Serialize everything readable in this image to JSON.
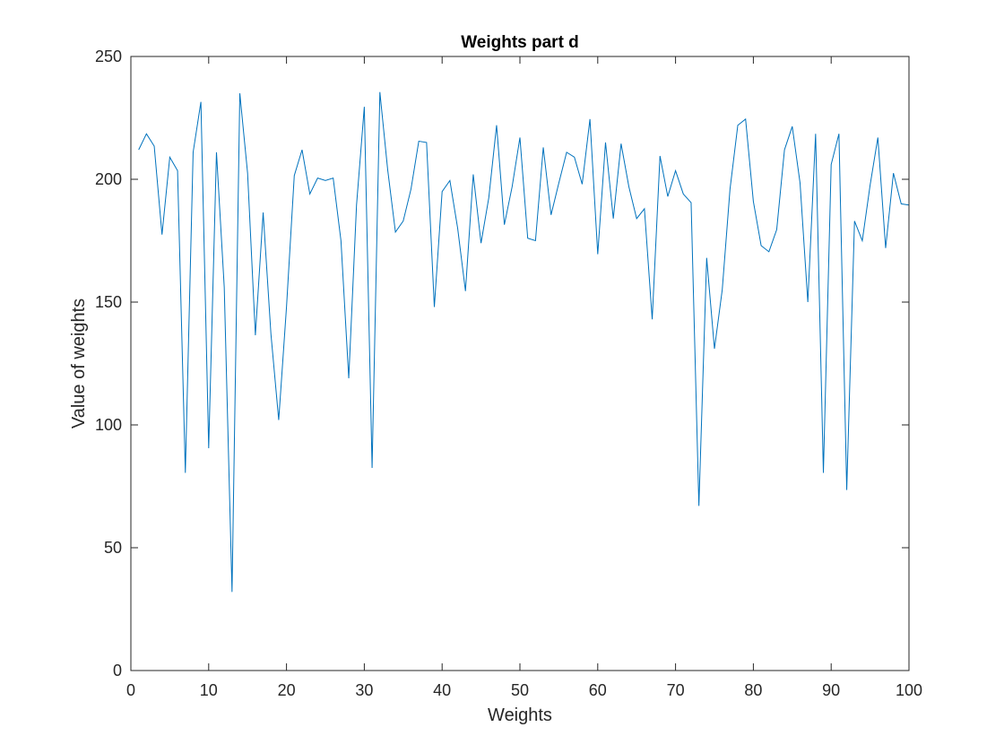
{
  "chart_data": {
    "type": "line",
    "title": "Weights part d",
    "xlabel": "Weights",
    "ylabel": "Value of weights",
    "xlim": [
      0,
      100
    ],
    "ylim": [
      0,
      250
    ],
    "xticks": [
      0,
      10,
      20,
      30,
      40,
      50,
      60,
      70,
      80,
      90,
      100
    ],
    "yticks": [
      0,
      50,
      100,
      150,
      200,
      250
    ],
    "grid": false,
    "line_color": "#0072BD",
    "series": [
      {
        "x": [
          1,
          2,
          3,
          4,
          5,
          6,
          7,
          8,
          9,
          10,
          11,
          12,
          13,
          14,
          15,
          16,
          17,
          18,
          19,
          20,
          21,
          22,
          23,
          24,
          25,
          26,
          27,
          28,
          29,
          30,
          31,
          32,
          33,
          34,
          35,
          36,
          37,
          38,
          39,
          40,
          41,
          42,
          43,
          44,
          45,
          46,
          47,
          48,
          49,
          50,
          51,
          52,
          53,
          54,
          55,
          56,
          57,
          58,
          59,
          60,
          61,
          62,
          63,
          64,
          65,
          66,
          67,
          68,
          69,
          70,
          71,
          72,
          73,
          74,
          75,
          76,
          77,
          78,
          79,
          80,
          81,
          82,
          83,
          84,
          85,
          86,
          87,
          88,
          89,
          90,
          91,
          92,
          93,
          94,
          95,
          96,
          97,
          98,
          99,
          100
        ],
        "values": [
          212,
          218.5,
          213.5,
          177.5,
          209,
          203.5,
          80.5,
          211,
          231.5,
          90.5,
          211,
          156,
          32,
          235,
          202.5,
          136.5,
          186.5,
          137,
          102,
          148,
          201.5,
          212,
          194,
          200.5,
          199.5,
          200.5,
          175,
          119,
          189.5,
          229.5,
          82.5,
          235.5,
          204,
          178.5,
          183,
          196,
          215.5,
          215,
          148,
          195,
          199.5,
          180,
          154.5,
          202,
          174,
          192.5,
          222,
          181.5,
          197,
          217,
          176,
          175,
          213,
          185.5,
          198.5,
          211,
          209,
          198,
          224.5,
          169.5,
          215,
          184,
          214.5,
          197,
          184,
          188,
          143,
          209.5,
          193,
          203.5,
          194,
          190.5,
          67,
          168,
          131,
          155,
          196,
          222,
          224.5,
          191,
          173,
          170.5,
          179.5,
          212,
          221.5,
          198.5,
          150,
          218.5,
          80.5,
          206,
          218.5,
          73.5,
          183,
          175,
          197.5,
          217,
          172,
          202.5,
          190,
          189.5
        ]
      }
    ]
  }
}
